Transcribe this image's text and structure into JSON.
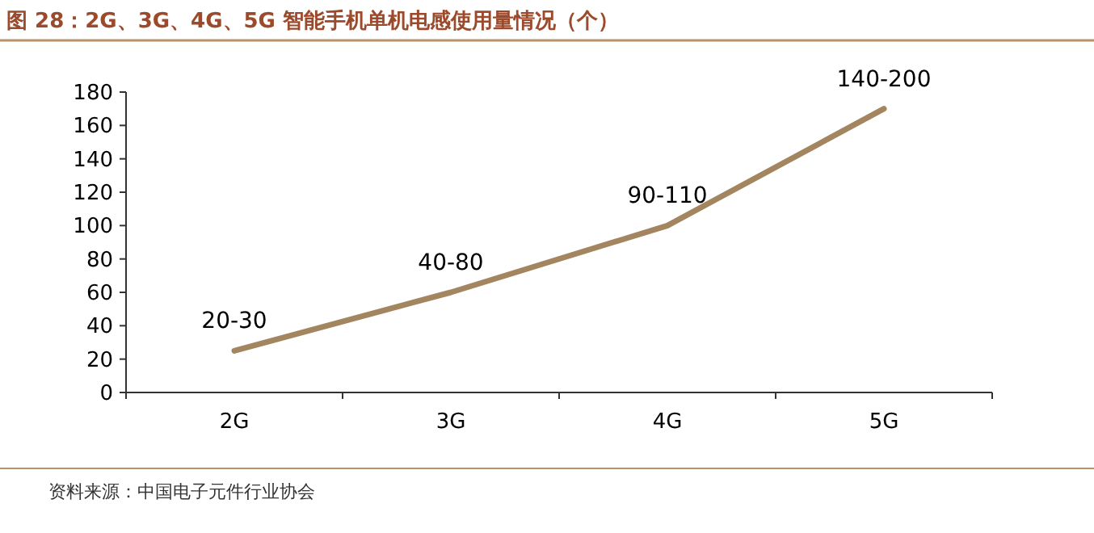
{
  "chart_data": {
    "type": "line",
    "title": "图 28：2G、3G、4G、5G 智能手机单机电感使用量情况（个）",
    "categories": [
      "2G",
      "3G",
      "4G",
      "5G"
    ],
    "series": [
      {
        "color": "#a38560",
        "values": [
          25,
          60,
          100,
          170
        ],
        "value_labels": [
          "20-30",
          "40-80",
          "90-110",
          "140-200"
        ]
      }
    ],
    "ylim": [
      0,
      180
    ],
    "yticks": [
      0,
      20,
      40,
      60,
      80,
      100,
      120,
      140,
      160,
      180
    ],
    "grid": false,
    "marker": "none",
    "line_style": "solid",
    "annotations": [
      "资料来源：中国电子元件行业协会"
    ]
  }
}
